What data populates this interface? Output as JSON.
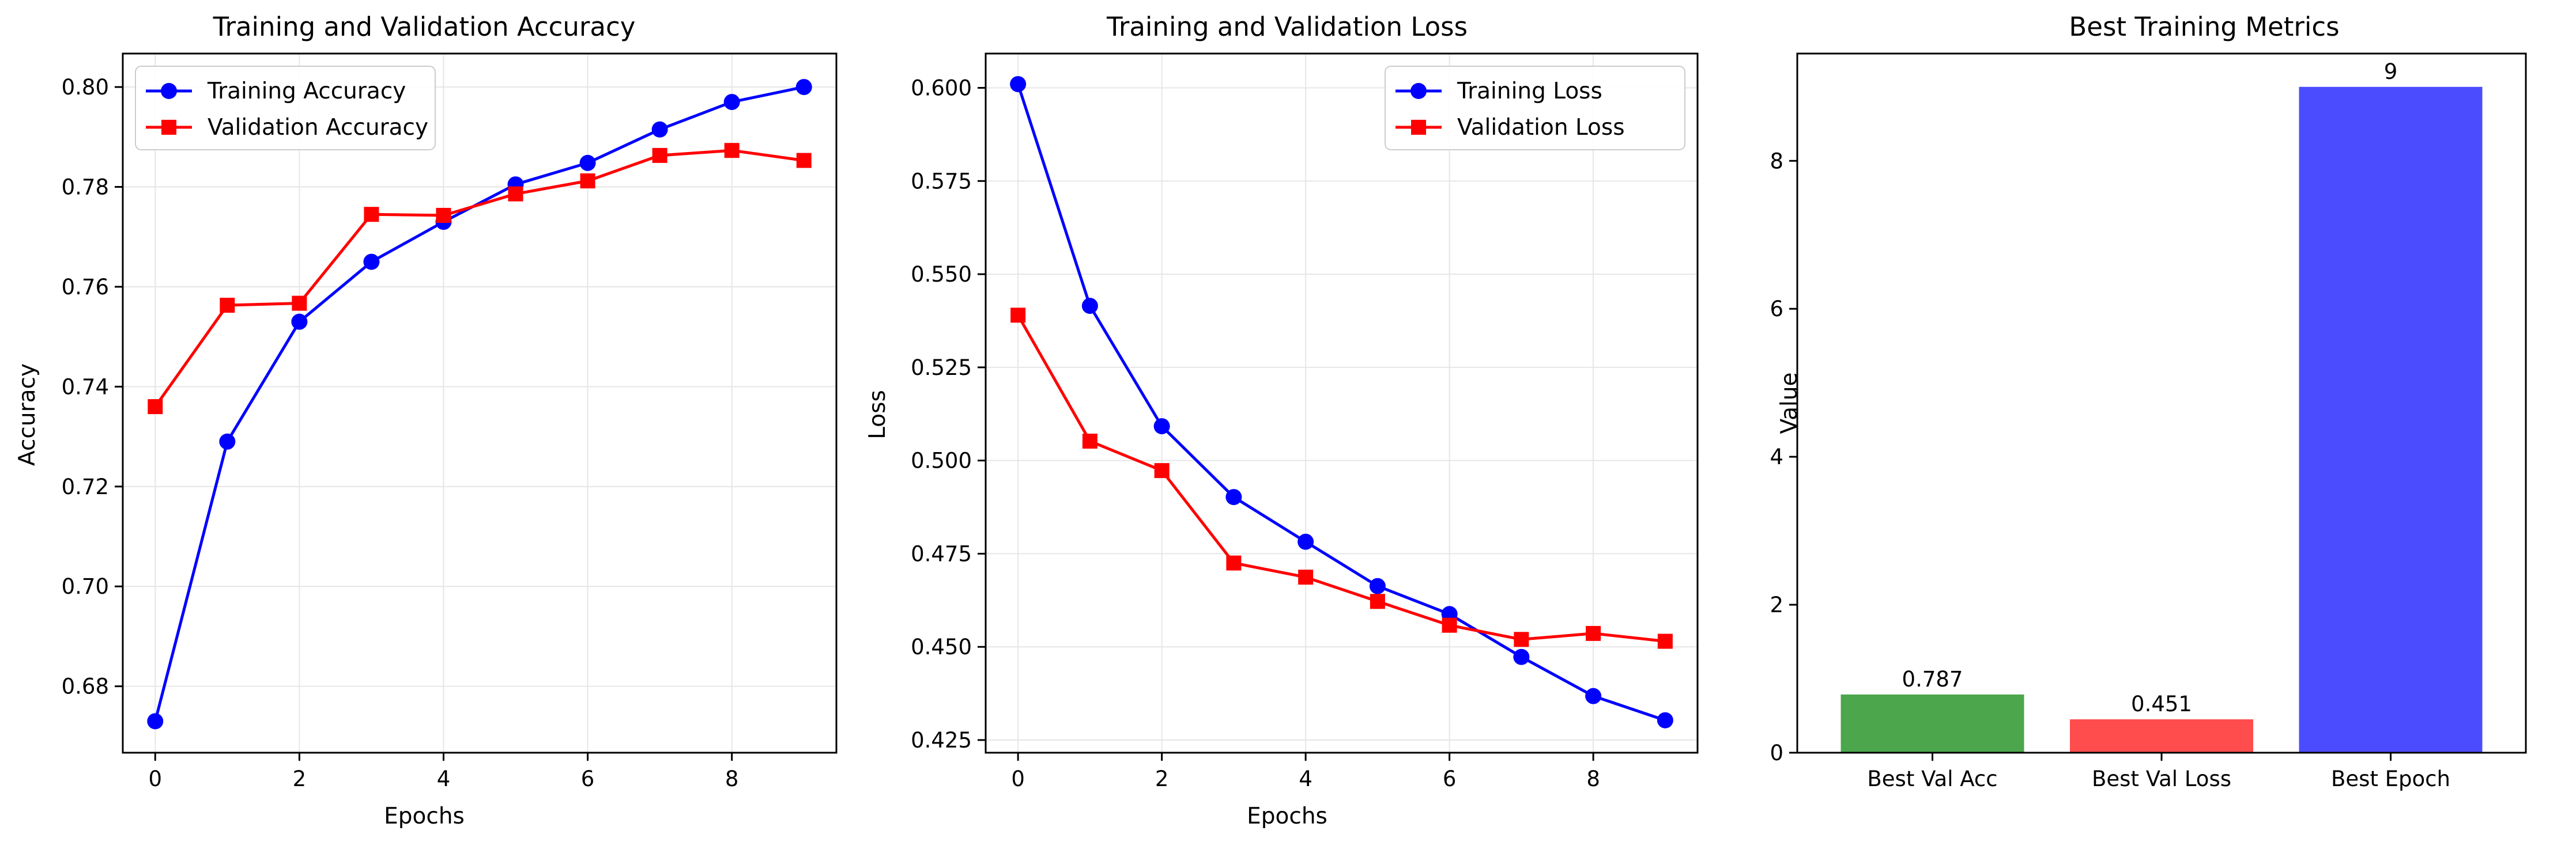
{
  "chart_data": [
    {
      "type": "line",
      "title": "Training and Validation Accuracy",
      "xlabel": "Epochs",
      "ylabel": "Accuracy",
      "x": [
        0,
        1,
        2,
        3,
        4,
        5,
        6,
        7,
        8,
        9
      ],
      "xlim": [
        -0.45,
        9.45
      ],
      "ylim": [
        0.6667,
        0.8067
      ],
      "xticks": [
        0,
        2,
        4,
        6,
        8
      ],
      "yticks": [
        0.68,
        0.7,
        0.72,
        0.74,
        0.76,
        0.78,
        0.8
      ],
      "ytick_labels": [
        "0.68",
        "0.70",
        "0.72",
        "0.74",
        "0.76",
        "0.78",
        "0.80"
      ],
      "grid": true,
      "legend": "upper-left",
      "series": [
        {
          "name": "Training Accuracy",
          "color": "#0000ff",
          "marker": "circle",
          "values": [
            0.673,
            0.729,
            0.753,
            0.765,
            0.773,
            0.7805,
            0.7848,
            0.7915,
            0.797,
            0.8
          ]
        },
        {
          "name": "Validation Accuracy",
          "color": "#ff0000",
          "marker": "square",
          "values": [
            0.736,
            0.7563,
            0.7567,
            0.7745,
            0.7743,
            0.7786,
            0.7812,
            0.7863,
            0.7873,
            0.7853
          ]
        }
      ]
    },
    {
      "type": "line",
      "title": "Training and Validation Loss",
      "xlabel": "Epochs",
      "ylabel": "Loss",
      "x": [
        0,
        1,
        2,
        3,
        4,
        5,
        6,
        7,
        8,
        9
      ],
      "xlim": [
        -0.45,
        9.45
      ],
      "ylim": [
        0.4216,
        0.6092
      ],
      "xticks": [
        0,
        2,
        4,
        6,
        8
      ],
      "yticks": [
        0.425,
        0.45,
        0.475,
        0.5,
        0.525,
        0.55,
        0.575,
        0.6
      ],
      "ytick_labels": [
        "0.425",
        "0.450",
        "0.475",
        "0.500",
        "0.525",
        "0.550",
        "0.575",
        "0.600"
      ],
      "grid": true,
      "legend": "upper-right",
      "series": [
        {
          "name": "Training Loss",
          "color": "#0000ff",
          "marker": "circle",
          "values": [
            0.601,
            0.5415,
            0.5092,
            0.4902,
            0.4782,
            0.4663,
            0.4588,
            0.4473,
            0.4368,
            0.4303
          ]
        },
        {
          "name": "Validation Loss",
          "color": "#ff0000",
          "marker": "square",
          "values": [
            0.539,
            0.5052,
            0.4973,
            0.4725,
            0.4687,
            0.4622,
            0.4558,
            0.452,
            0.4536,
            0.4515
          ]
        }
      ]
    },
    {
      "type": "bar",
      "title": "Best Training Metrics",
      "xlabel": "",
      "ylabel": "Value",
      "categories": [
        "Best Val Acc",
        "Best Val Loss",
        "Best Epoch"
      ],
      "values": [
        0.787,
        0.451,
        9
      ],
      "value_labels": [
        "0.787",
        "0.451",
        "9"
      ],
      "colors": [
        "#4ca64c",
        "#ff4c4c",
        "#4c4cff"
      ],
      "ylim": [
        0,
        9.45
      ],
      "yticks": [
        0,
        2,
        4,
        6,
        8
      ],
      "ytick_labels": [
        "0",
        "2",
        "4",
        "6",
        "8"
      ],
      "grid": false
    }
  ]
}
